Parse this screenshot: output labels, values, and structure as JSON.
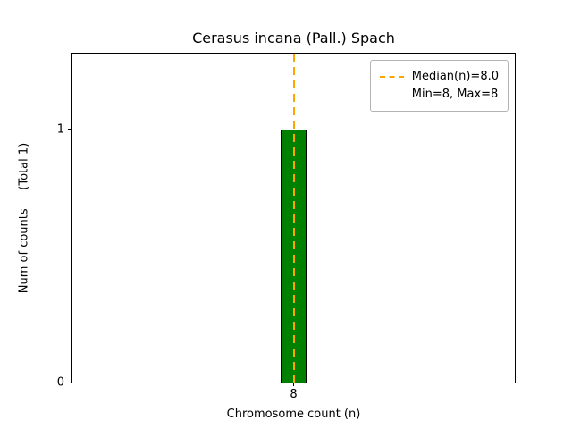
{
  "figure": {
    "background": "#ffffff"
  },
  "chart_data": {
    "type": "bar",
    "title": "Cerasus incana (Pall.) Spach",
    "xlabel": "Chromosome count (n)",
    "ylabel": "Num of counts     (Total 1)",
    "x": [
      8
    ],
    "values": [
      1
    ],
    "bar_width": 0.06,
    "bar_color": "#008000",
    "bar_edge_color": "#000000",
    "median_line": {
      "x": 8.0,
      "label": "Median(n)=8.0",
      "color": "#ffa500",
      "style": "dashed"
    },
    "legend_entries": [
      {
        "label": "Median(n)=8.0",
        "marker": "dashed-line",
        "color": "#ffa500"
      },
      {
        "label": "Min=8, Max=8",
        "marker": "none"
      }
    ],
    "legend_position": "upper right",
    "xlim": [
      7.5,
      8.5
    ],
    "ylim": [
      0,
      1.3
    ],
    "xticks": [
      8
    ],
    "yticks": [
      0,
      1
    ],
    "grid": false
  }
}
